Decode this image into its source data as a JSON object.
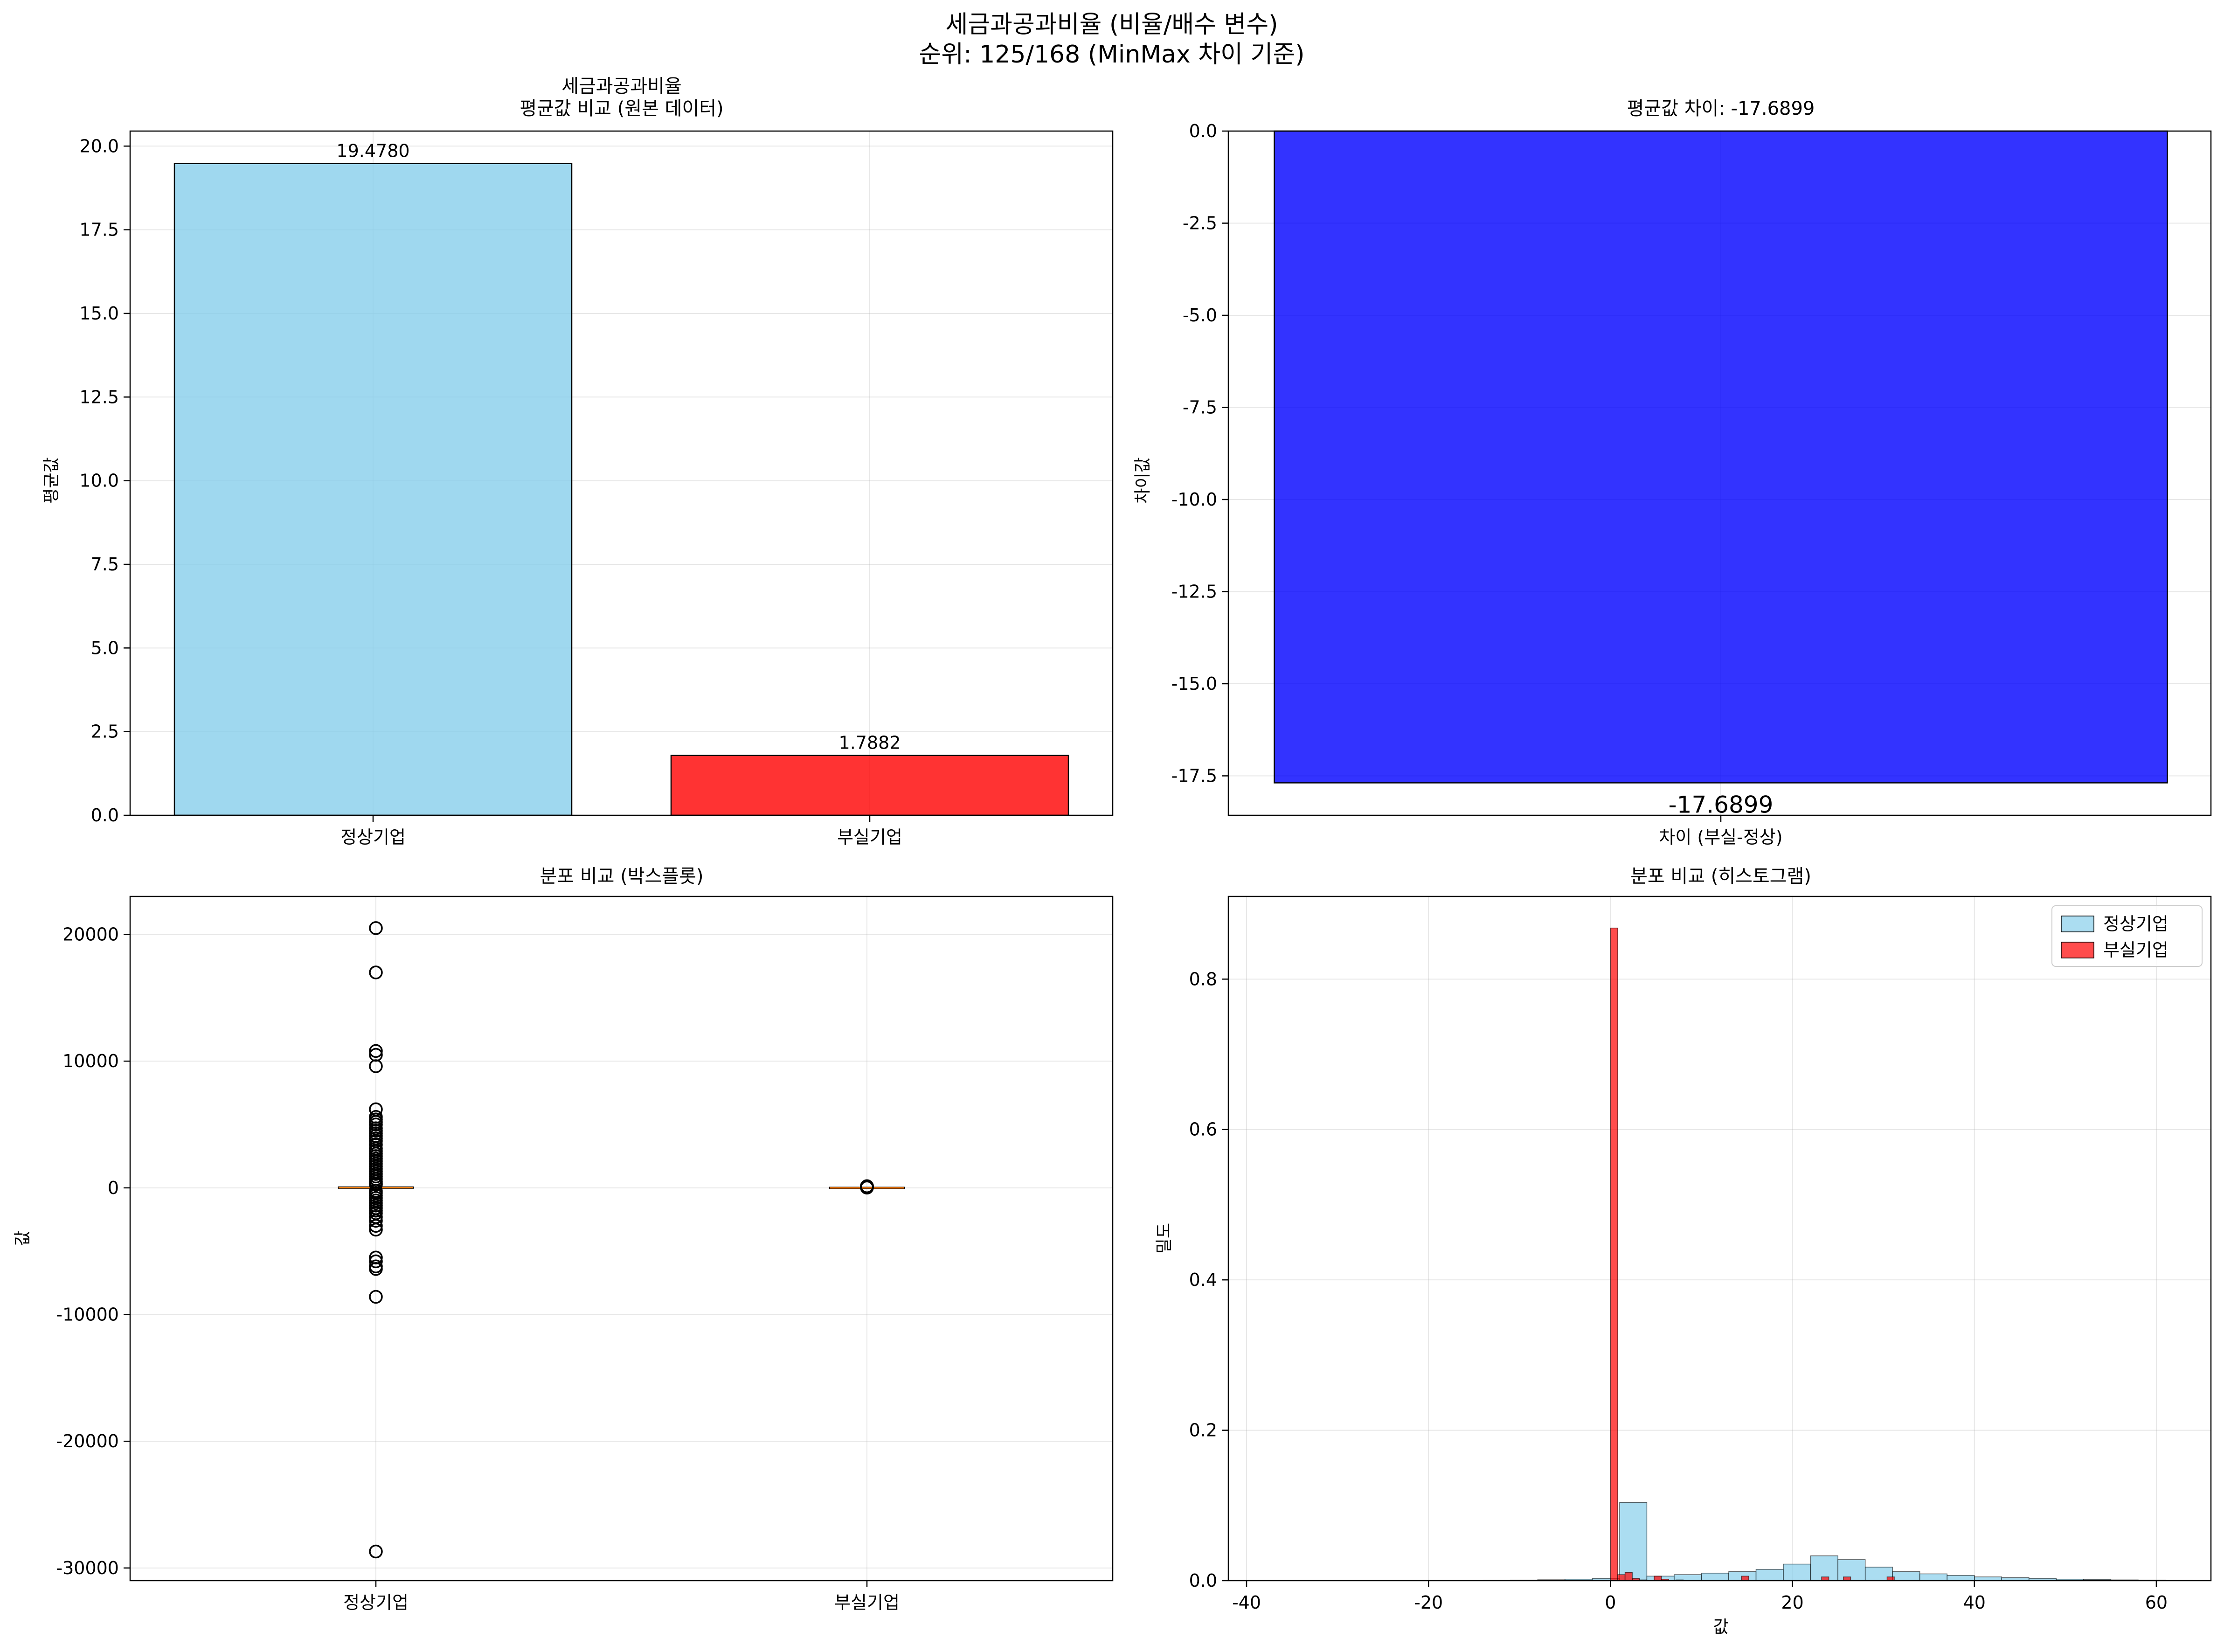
{
  "figure": {
    "title_line1": "세금과공과비율 (비율/배수 변수)",
    "title_line2": "순위: 125/168 (MinMax 차이 기준)"
  },
  "colors": {
    "normal": "#87ceeb",
    "failed": "#ff0000",
    "diff": "#0000ff",
    "median": "#ff7f0e"
  },
  "chart_data": [
    {
      "id": "mean-bar",
      "type": "bar",
      "title_line1": "세금과공과비율",
      "title_line2": "평균값 비교 (원본 데이터)",
      "categories": [
        "정상기업",
        "부실기업"
      ],
      "values": [
        19.478,
        1.7882
      ],
      "value_labels": [
        "19.4780",
        "1.7882"
      ],
      "ylabel": "평균값",
      "ylim": [
        0,
        20.45
      ],
      "yticks": [
        0,
        2.5,
        5,
        7.5,
        10,
        12.5,
        15,
        17.5,
        20
      ],
      "ytick_labels": [
        "0.0",
        "2.5",
        "5.0",
        "7.5",
        "10.0",
        "12.5",
        "15.0",
        "17.5",
        "20.0"
      ],
      "grid": true
    },
    {
      "id": "diff-bar",
      "type": "bar",
      "title": "평균값 차이: -17.6899",
      "categories": [
        "차이 (부실-정상)"
      ],
      "values": [
        -17.6899
      ],
      "value_labels": [
        "-17.6899"
      ],
      "ylabel": "차이값",
      "ylim": [
        -18.57,
        0
      ],
      "yticks": [
        0,
        -2.5,
        -5,
        -7.5,
        -10,
        -12.5,
        -15,
        -17.5
      ],
      "ytick_labels": [
        "0.0",
        "-2.5",
        "-5.0",
        "-7.5",
        "-10.0",
        "-12.5",
        "-15.0",
        "-17.5"
      ],
      "grid": true
    },
    {
      "id": "boxplot",
      "type": "box",
      "title": "분포 비교 (박스플롯)",
      "categories": [
        "정상기업",
        "부실기업"
      ],
      "ylabel": "값",
      "ylim": [
        -31000,
        23000
      ],
      "yticks": [
        20000,
        10000,
        0,
        -10000,
        -20000,
        -30000
      ],
      "ytick_labels": [
        "20000",
        "10000",
        "0",
        "-10000",
        "-20000",
        "-30000"
      ],
      "series": [
        {
          "name": "정상기업",
          "median": 19,
          "q1": 10,
          "q3": 28,
          "outliers": [
            20500,
            17000,
            10800,
            10500,
            9600,
            6200,
            5600,
            5400,
            5200,
            5000,
            4700,
            4500,
            4300,
            4100,
            3900,
            3700,
            3400,
            3100,
            2900,
            2700,
            2500,
            2300,
            2100,
            1900,
            1700,
            1500,
            1300,
            1100,
            900,
            700,
            500,
            350,
            250,
            -250,
            -400,
            -600,
            -800,
            -1000,
            -1200,
            -1400,
            -1600,
            -1800,
            -2000,
            -2300,
            -2600,
            -3000,
            -3300,
            -5500,
            -5800,
            -6200,
            -6400,
            -8600,
            -28700
          ]
        },
        {
          "name": "부실기업",
          "median": 0.4,
          "q1": 0,
          "q3": 2,
          "outliers": [
            20,
            30,
            40,
            50,
            60,
            70,
            80,
            90,
            100,
            110,
            120,
            130
          ]
        }
      ],
      "grid": true
    },
    {
      "id": "histogram",
      "type": "histogram",
      "title": "분포 비교 (히스토그램)",
      "xlabel": "값",
      "ylabel": "밀도",
      "xlim": [
        -42,
        66
      ],
      "ylim": [
        0,
        0.91
      ],
      "xticks": [
        -40,
        -20,
        0,
        20,
        40,
        60
      ],
      "xtick_labels": [
        "-40",
        "-20",
        "0",
        "20",
        "40",
        "60"
      ],
      "yticks": [
        0,
        0.2,
        0.4,
        0.6,
        0.8
      ],
      "ytick_labels": [
        "0.0",
        "0.2",
        "0.4",
        "0.6",
        "0.8"
      ],
      "legend_position": "top-right",
      "series": [
        {
          "name": "정상기업",
          "bin_edges": [
            -14,
            -11,
            -8,
            -5,
            -2,
            1,
            4,
            7,
            10,
            13,
            16,
            19,
            22,
            25,
            28,
            31,
            34,
            37,
            40,
            43,
            46,
            49,
            52,
            55,
            58,
            61,
            64
          ],
          "densities": [
            0.0006,
            0.0008,
            0.0012,
            0.002,
            0.003,
            0.104,
            0.006,
            0.008,
            0.01,
            0.012,
            0.015,
            0.022,
            0.033,
            0.028,
            0.018,
            0.012,
            0.009,
            0.007,
            0.005,
            0.004,
            0.003,
            0.002,
            0.0015,
            0.001,
            0.0008,
            0.0005
          ]
        },
        {
          "name": "부실기업",
          "bin_edges": [
            0,
            0.8,
            1.6,
            2.4,
            3.2,
            4,
            4.8,
            5.6,
            6.4,
            7.2,
            8,
            8.8,
            9.6,
            14.4,
            15.2,
            20.8,
            21.6,
            23.2,
            24,
            25.6,
            26.4,
            30.4,
            31.2
          ],
          "densities": [
            0.868,
            0.008,
            0.011,
            0.003,
            0.001,
            0,
            0.006,
            0.002,
            0,
            0.001,
            0,
            0,
            0,
            0.006,
            0,
            0,
            0,
            0.005,
            0,
            0.005,
            0,
            0.005
          ]
        }
      ],
      "grid": true
    }
  ]
}
